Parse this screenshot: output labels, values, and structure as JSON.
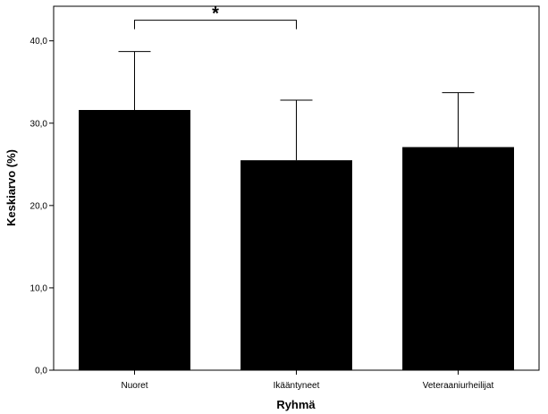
{
  "chart_data": {
    "type": "bar",
    "title": "",
    "xlabel": "Ryhmä",
    "ylabel": "Keskiarvo (%)",
    "categories": [
      "Nuoret",
      "Ikääntyneet",
      "Veteraaniurheilijat"
    ],
    "values": [
      31.6,
      25.5,
      27.1
    ],
    "error_upper": [
      38.7,
      32.8,
      33.7
    ],
    "ylim": [
      0,
      44.2
    ],
    "yticks": [
      0,
      10,
      20,
      30,
      40
    ],
    "ytick_labels": [
      "0,0",
      "10,0",
      "20,0",
      "30,0",
      "40,0"
    ],
    "grid": false,
    "legend": "none",
    "bar_color": "#000000",
    "significance": {
      "from_category": 0,
      "to_category": 1,
      "level": 42.5,
      "label": "*"
    }
  }
}
